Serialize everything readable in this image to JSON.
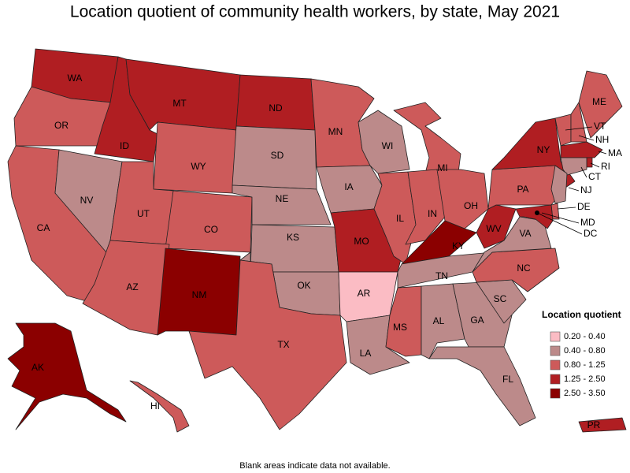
{
  "title": "Location quotient of community health workers, by state, May 2021",
  "legend": {
    "title": "Location quotient",
    "items": [
      {
        "label": "0.20 - 0.40",
        "color": "#fbbcc4"
      },
      {
        "label": "0.40 - 0.80",
        "color": "#bc8a8a"
      },
      {
        "label": "0.80 - 1.25",
        "color": "#cd5a5a"
      },
      {
        "label": "1.25 - 2.50",
        "color": "#b01e22"
      },
      {
        "label": "2.50 - 3.50",
        "color": "#8b0000"
      }
    ]
  },
  "states": [
    {
      "label": "WA",
      "color": "#b01e22"
    },
    {
      "label": "OR",
      "color": "#cd5a5a"
    },
    {
      "label": "CA",
      "color": "#cd5a5a"
    },
    {
      "label": "NV",
      "color": "#bc8a8a"
    },
    {
      "label": "ID",
      "color": "#b01e22"
    },
    {
      "label": "MT",
      "color": "#b01e22"
    },
    {
      "label": "WY",
      "color": "#cd5a5a"
    },
    {
      "label": "UT",
      "color": "#cd5a5a"
    },
    {
      "label": "CO",
      "color": "#cd5a5a"
    },
    {
      "label": "AZ",
      "color": "#cd5a5a"
    },
    {
      "label": "NM",
      "color": "#8b0000"
    },
    {
      "label": "ND",
      "color": "#b01e22"
    },
    {
      "label": "SD",
      "color": "#bc8a8a"
    },
    {
      "label": "NE",
      "color": "#bc8a8a"
    },
    {
      "label": "KS",
      "color": "#bc8a8a"
    },
    {
      "label": "OK",
      "color": "#bc8a8a"
    },
    {
      "label": "TX",
      "color": "#cd5a5a"
    },
    {
      "label": "MN",
      "color": "#cd5a5a"
    },
    {
      "label": "IA",
      "color": "#bc8a8a"
    },
    {
      "label": "MO",
      "color": "#b01e22"
    },
    {
      "label": "AR",
      "color": "#fbbcc4"
    },
    {
      "label": "LA",
      "color": "#bc8a8a"
    },
    {
      "label": "WI",
      "color": "#bc8a8a"
    },
    {
      "label": "IL",
      "color": "#cd5a5a"
    },
    {
      "label": "MI",
      "color": "#cd5a5a"
    },
    {
      "label": "IN",
      "color": "#cd5a5a"
    },
    {
      "label": "OH",
      "color": "#cd5a5a"
    },
    {
      "label": "KY",
      "color": "#8b0000"
    },
    {
      "label": "TN",
      "color": "#bc8a8a"
    },
    {
      "label": "MS",
      "color": "#cd5a5a"
    },
    {
      "label": "AL",
      "color": "#bc8a8a"
    },
    {
      "label": "GA",
      "color": "#bc8a8a"
    },
    {
      "label": "FL",
      "color": "#bc8a8a"
    },
    {
      "label": "SC",
      "color": "#bc8a8a"
    },
    {
      "label": "NC",
      "color": "#cd5a5a"
    },
    {
      "label": "VA",
      "color": "#bc8a8a"
    },
    {
      "label": "WV",
      "color": "#b01e22"
    },
    {
      "label": "PA",
      "color": "#cd5a5a"
    },
    {
      "label": "NY",
      "color": "#b01e22"
    },
    {
      "label": "VT",
      "color": "#cd5a5a"
    },
    {
      "label": "NH",
      "color": "#cd5a5a"
    },
    {
      "label": "ME",
      "color": "#cd5a5a"
    },
    {
      "label": "MA",
      "color": "#b01e22"
    },
    {
      "label": "RI",
      "color": "#b01e22"
    },
    {
      "label": "CT",
      "color": "#bc8a8a"
    },
    {
      "label": "NJ",
      "color": "#bc8a8a"
    },
    {
      "label": "DE",
      "color": "#cd5a5a"
    },
    {
      "label": "MD",
      "color": "#b01e22"
    },
    {
      "label": "DC",
      "color": "#000000"
    },
    {
      "label": "AK",
      "color": "#8b0000"
    },
    {
      "label": "HI",
      "color": "#cd5a5a"
    },
    {
      "label": "PR",
      "color": "#b01e22"
    }
  ],
  "footnote": "Blank areas indicate data not available."
}
